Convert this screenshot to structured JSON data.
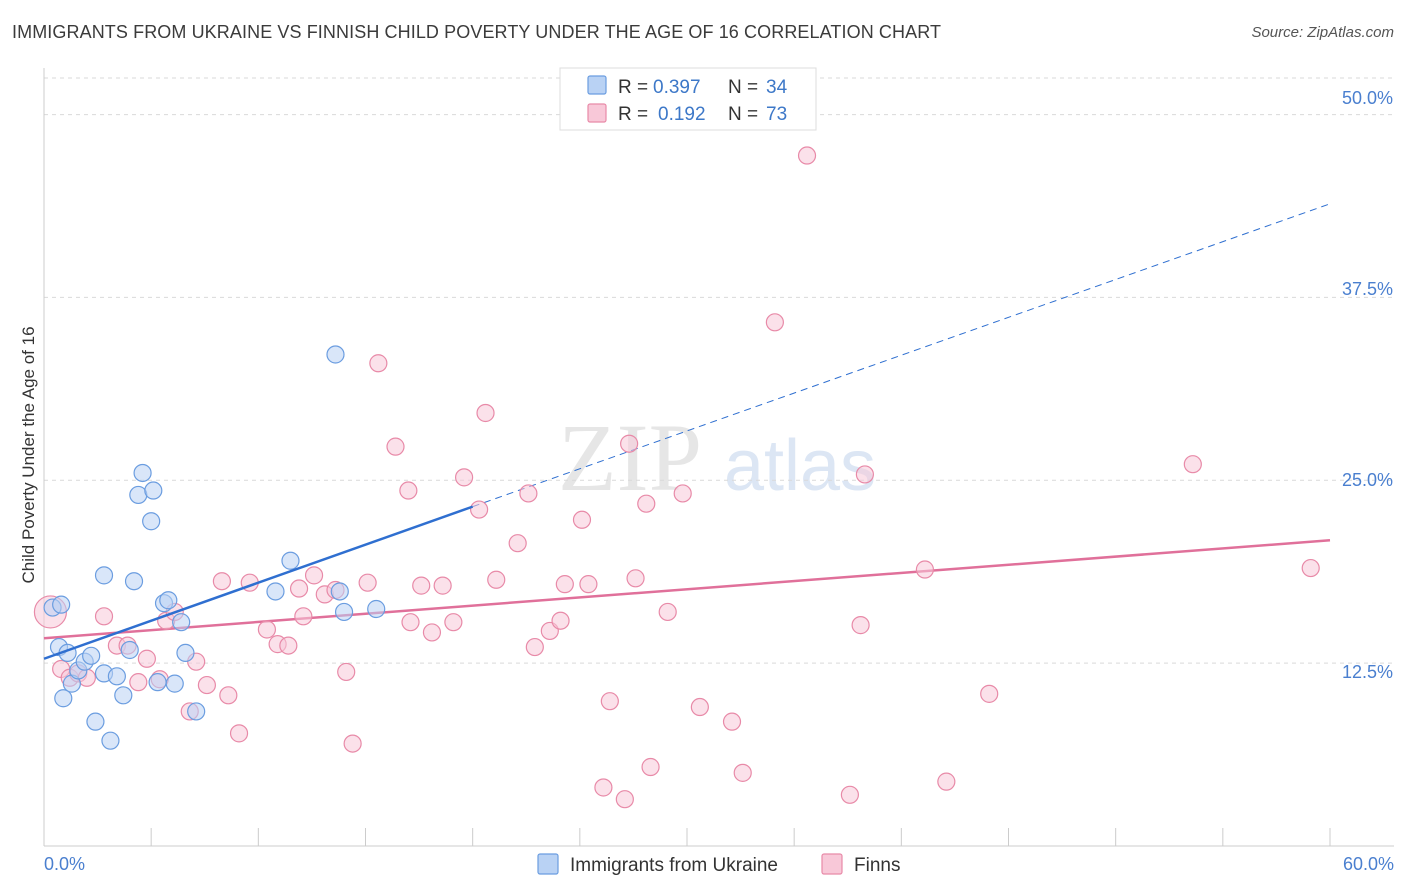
{
  "header": {
    "title": "IMMIGRANTS FROM UKRAINE VS FINNISH CHILD POVERTY UNDER THE AGE OF 16 CORRELATION CHART",
    "source": "Source: ZipAtlas.com"
  },
  "watermark": {
    "zip": "ZIP",
    "atlas": "atlas"
  },
  "colors": {
    "ukraine": "#6b9de0",
    "ukraine_fill": "#b9d2f4",
    "finns": "#e88aa8",
    "finns_fill": "#f8c8d8",
    "ukraine_line": "#2f6fd0",
    "finns_line": "#e0709a",
    "tick": "#4a7fcf",
    "grid": "#d9d9d9"
  },
  "legend": {
    "rows": [
      {
        "r_label": "R = ",
        "r_value": "0.397",
        "n_label": "N = ",
        "n_value": "34"
      },
      {
        "r_label": "R = ",
        "r_value": "0.192",
        "n_label": "N = ",
        "n_value": "73"
      }
    ]
  },
  "chart_data": {
    "type": "scatter",
    "title": "IMMIGRANTS FROM UKRAINE VS FINNISH CHILD POVERTY UNDER THE AGE OF 16 CORRELATION CHART",
    "xlabel": "",
    "ylabel": "Child Poverty Under the Age of 16",
    "xlim": [
      0,
      60
    ],
    "ylim": [
      0,
      52.5
    ],
    "x_tick_labels": [
      "0.0%",
      "60.0%"
    ],
    "y_ticks": [
      12.5,
      25.0,
      37.5,
      50.0
    ],
    "y_tick_labels": [
      "12.5%",
      "25.0%",
      "37.5%",
      "50.0%"
    ],
    "series": [
      {
        "name": "Immigrants from Ukraine",
        "points": [
          [
            0.4,
            16.3
          ],
          [
            0.7,
            13.6
          ],
          [
            0.8,
            16.5
          ],
          [
            0.9,
            10.1
          ],
          [
            1.1,
            13.2
          ],
          [
            1.3,
            11.1
          ],
          [
            1.6,
            12.0
          ],
          [
            1.9,
            12.6
          ],
          [
            2.2,
            13.0
          ],
          [
            2.4,
            8.5
          ],
          [
            2.8,
            18.5
          ],
          [
            2.8,
            11.8
          ],
          [
            3.1,
            7.2
          ],
          [
            3.4,
            11.6
          ],
          [
            3.7,
            10.3
          ],
          [
            4.0,
            13.4
          ],
          [
            4.2,
            18.1
          ],
          [
            4.4,
            24.0
          ],
          [
            4.6,
            25.5
          ],
          [
            5.1,
            24.3
          ],
          [
            5.0,
            22.2
          ],
          [
            5.3,
            11.2
          ],
          [
            5.6,
            16.6
          ],
          [
            5.8,
            16.8
          ],
          [
            6.1,
            11.1
          ],
          [
            6.4,
            15.3
          ],
          [
            6.6,
            13.2
          ],
          [
            7.1,
            9.2
          ],
          [
            10.8,
            17.4
          ],
          [
            11.5,
            19.5
          ],
          [
            13.6,
            33.6
          ],
          [
            13.8,
            17.4
          ],
          [
            14.0,
            16.0
          ],
          [
            15.5,
            16.2
          ]
        ],
        "trend": {
          "x0": 0.0,
          "y0": 12.8,
          "x1": 20.0,
          "y1": 23.2,
          "x_dash_end": 60.0,
          "y_dash_end": 43.9
        }
      },
      {
        "name": "Finns",
        "points": [
          [
            0.3,
            16.0
          ],
          [
            0.8,
            12.1
          ],
          [
            1.2,
            11.5
          ],
          [
            1.6,
            11.8
          ],
          [
            2.0,
            11.5
          ],
          [
            2.8,
            15.7
          ],
          [
            3.4,
            13.7
          ],
          [
            3.9,
            13.7
          ],
          [
            4.4,
            11.2
          ],
          [
            4.8,
            12.8
          ],
          [
            5.4,
            11.4
          ],
          [
            5.7,
            15.4
          ],
          [
            6.1,
            16.0
          ],
          [
            6.8,
            9.2
          ],
          [
            7.1,
            12.6
          ],
          [
            7.6,
            11.0
          ],
          [
            8.3,
            18.1
          ],
          [
            8.6,
            10.3
          ],
          [
            9.1,
            7.7
          ],
          [
            9.6,
            18.0
          ],
          [
            10.4,
            14.8
          ],
          [
            10.9,
            13.8
          ],
          [
            11.4,
            13.7
          ],
          [
            11.9,
            17.6
          ],
          [
            12.1,
            15.7
          ],
          [
            12.6,
            18.5
          ],
          [
            13.1,
            17.2
          ],
          [
            13.6,
            17.5
          ],
          [
            14.1,
            11.9
          ],
          [
            14.4,
            7.0
          ],
          [
            15.1,
            18.0
          ],
          [
            15.6,
            33.0
          ],
          [
            16.4,
            27.3
          ],
          [
            17.0,
            24.3
          ],
          [
            17.1,
            15.3
          ],
          [
            17.6,
            17.8
          ],
          [
            18.1,
            14.6
          ],
          [
            18.6,
            17.8
          ],
          [
            19.1,
            15.3
          ],
          [
            19.6,
            25.2
          ],
          [
            20.3,
            23.0
          ],
          [
            20.6,
            29.6
          ],
          [
            21.1,
            18.2
          ],
          [
            22.1,
            20.7
          ],
          [
            22.6,
            24.1
          ],
          [
            22.9,
            13.6
          ],
          [
            23.6,
            14.7
          ],
          [
            24.1,
            15.4
          ],
          [
            24.3,
            17.9
          ],
          [
            25.1,
            22.3
          ],
          [
            25.4,
            17.9
          ],
          [
            26.1,
            4.0
          ],
          [
            26.4,
            9.9
          ],
          [
            27.1,
            3.2
          ],
          [
            27.3,
            27.5
          ],
          [
            27.6,
            18.3
          ],
          [
            28.1,
            23.4
          ],
          [
            28.3,
            5.4
          ],
          [
            29.1,
            16.0
          ],
          [
            29.8,
            24.1
          ],
          [
            30.6,
            9.5
          ],
          [
            32.1,
            8.5
          ],
          [
            32.6,
            5.0
          ],
          [
            34.1,
            35.8
          ],
          [
            37.6,
            3.5
          ],
          [
            38.1,
            15.1
          ],
          [
            38.3,
            25.4
          ],
          [
            41.1,
            18.9
          ],
          [
            42.1,
            4.4
          ],
          [
            44.1,
            10.4
          ],
          [
            53.6,
            26.1
          ],
          [
            59.1,
            19.0
          ],
          [
            35.6,
            47.2
          ]
        ],
        "trend": {
          "x0": 0.0,
          "y0": 14.2,
          "x1": 60.0,
          "y1": 20.9
        }
      }
    ],
    "legend": [
      "Immigrants from Ukraine",
      "Finns"
    ],
    "grid": true
  }
}
